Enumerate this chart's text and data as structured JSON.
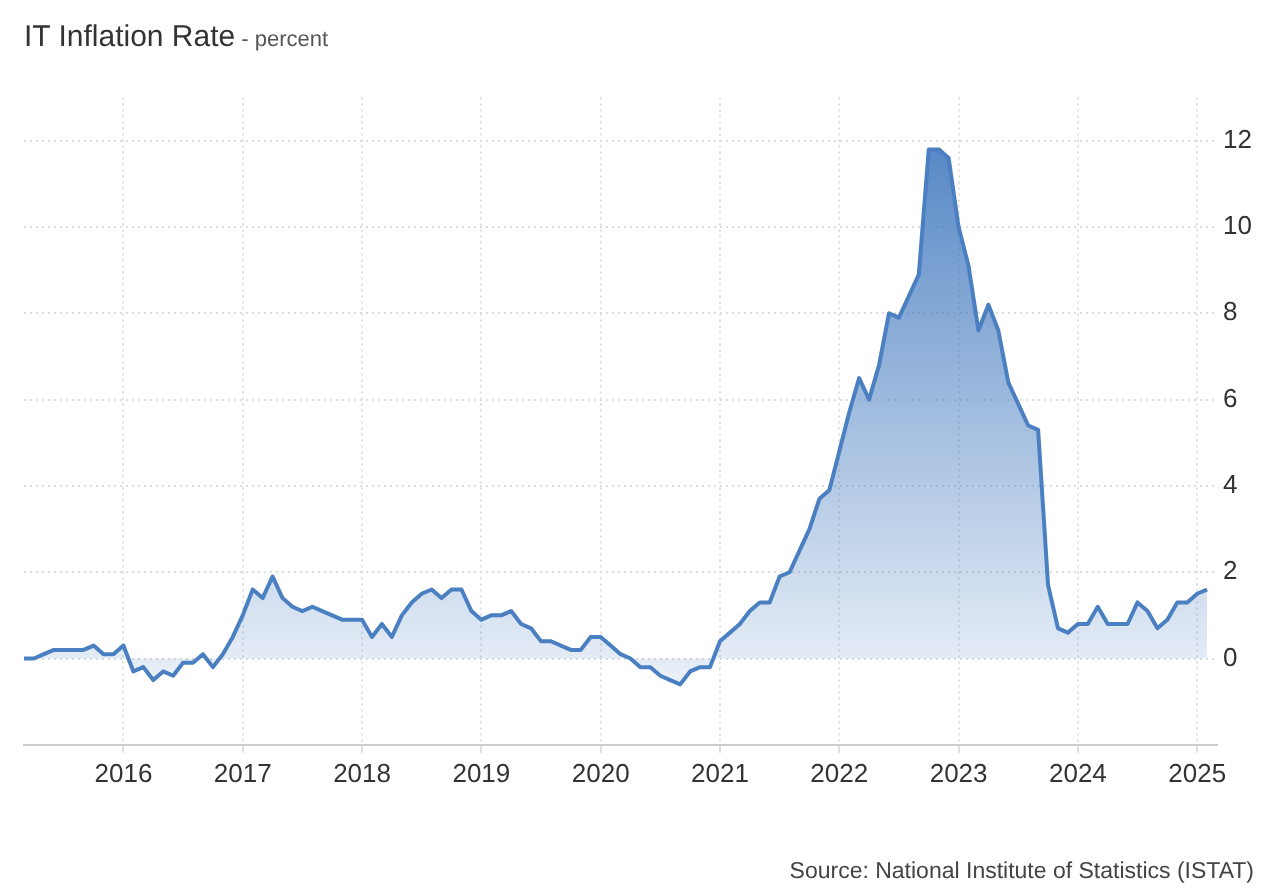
{
  "chart_data": {
    "type": "area",
    "title": "IT Inflation Rate",
    "subtitle": "- percent",
    "annotations": [
      "Source: National Institute of Statistics (ISTAT)"
    ],
    "x": [
      "2015-03",
      "2015-04",
      "2015-05",
      "2015-06",
      "2015-07",
      "2015-08",
      "2015-09",
      "2015-10",
      "2015-11",
      "2015-12",
      "2016-01",
      "2016-02",
      "2016-03",
      "2016-04",
      "2016-05",
      "2016-06",
      "2016-07",
      "2016-08",
      "2016-09",
      "2016-10",
      "2016-11",
      "2016-12",
      "2017-01",
      "2017-02",
      "2017-03",
      "2017-04",
      "2017-05",
      "2017-06",
      "2017-07",
      "2017-08",
      "2017-09",
      "2017-10",
      "2017-11",
      "2017-12",
      "2018-01",
      "2018-02",
      "2018-03",
      "2018-04",
      "2018-05",
      "2018-06",
      "2018-07",
      "2018-08",
      "2018-09",
      "2018-10",
      "2018-11",
      "2018-12",
      "2019-01",
      "2019-02",
      "2019-03",
      "2019-04",
      "2019-05",
      "2019-06",
      "2019-07",
      "2019-08",
      "2019-09",
      "2019-10",
      "2019-11",
      "2019-12",
      "2020-01",
      "2020-02",
      "2020-03",
      "2020-04",
      "2020-05",
      "2020-06",
      "2020-07",
      "2020-08",
      "2020-09",
      "2020-10",
      "2020-11",
      "2020-12",
      "2021-01",
      "2021-02",
      "2021-03",
      "2021-04",
      "2021-05",
      "2021-06",
      "2021-07",
      "2021-08",
      "2021-09",
      "2021-10",
      "2021-11",
      "2021-12",
      "2022-01",
      "2022-02",
      "2022-03",
      "2022-04",
      "2022-05",
      "2022-06",
      "2022-07",
      "2022-08",
      "2022-09",
      "2022-10",
      "2022-11",
      "2022-12",
      "2023-01",
      "2023-02",
      "2023-03",
      "2023-04",
      "2023-05",
      "2023-06",
      "2023-07",
      "2023-08",
      "2023-09",
      "2023-10",
      "2023-11",
      "2023-12",
      "2024-01",
      "2024-02",
      "2024-03",
      "2024-04",
      "2024-05",
      "2024-06",
      "2024-07",
      "2024-08",
      "2024-09",
      "2024-10",
      "2024-11",
      "2024-12",
      "2025-01",
      "2025-02"
    ],
    "series": [
      {
        "color": "#4a7fc1",
        "values": [
          0.0,
          0.0,
          0.1,
          0.2,
          0.2,
          0.2,
          0.2,
          0.3,
          0.1,
          0.1,
          0.3,
          -0.3,
          -0.2,
          -0.5,
          -0.3,
          -0.4,
          -0.1,
          -0.1,
          0.1,
          -0.2,
          0.1,
          0.5,
          1.0,
          1.6,
          1.4,
          1.9,
          1.4,
          1.2,
          1.1,
          1.2,
          1.1,
          1.0,
          0.9,
          0.9,
          0.9,
          0.5,
          0.8,
          0.5,
          1.0,
          1.3,
          1.5,
          1.6,
          1.4,
          1.6,
          1.6,
          1.1,
          0.9,
          1.0,
          1.0,
          1.1,
          0.8,
          0.7,
          0.4,
          0.4,
          0.3,
          0.2,
          0.2,
          0.5,
          0.5,
          0.3,
          0.1,
          0.0,
          -0.2,
          -0.2,
          -0.4,
          -0.5,
          -0.6,
          -0.3,
          -0.2,
          -0.2,
          0.4,
          0.6,
          0.8,
          1.1,
          1.3,
          1.3,
          1.9,
          2.0,
          2.5,
          3.0,
          3.7,
          3.9,
          4.8,
          5.7,
          6.5,
          6.0,
          6.8,
          8.0,
          7.9,
          8.4,
          8.9,
          11.8,
          11.8,
          11.6,
          10.0,
          9.1,
          7.6,
          8.2,
          7.6,
          6.4,
          5.9,
          5.4,
          5.3,
          1.7,
          0.7,
          0.6,
          0.8,
          0.8,
          1.2,
          0.8,
          0.8,
          0.8,
          1.3,
          1.1,
          0.7,
          0.9,
          1.3,
          1.3,
          1.5,
          1.6
        ]
      }
    ],
    "xlim": [
      "2015-03",
      "2025-03"
    ],
    "xticks": [
      "2016",
      "2017",
      "2018",
      "2019",
      "2020",
      "2021",
      "2022",
      "2023",
      "2024",
      "2025"
    ],
    "ylim": [
      -2,
      13
    ],
    "yticks": [
      0,
      2,
      4,
      6,
      8,
      10,
      12
    ],
    "grid": true,
    "legend": false,
    "marker": "none",
    "line_style": "solid"
  }
}
